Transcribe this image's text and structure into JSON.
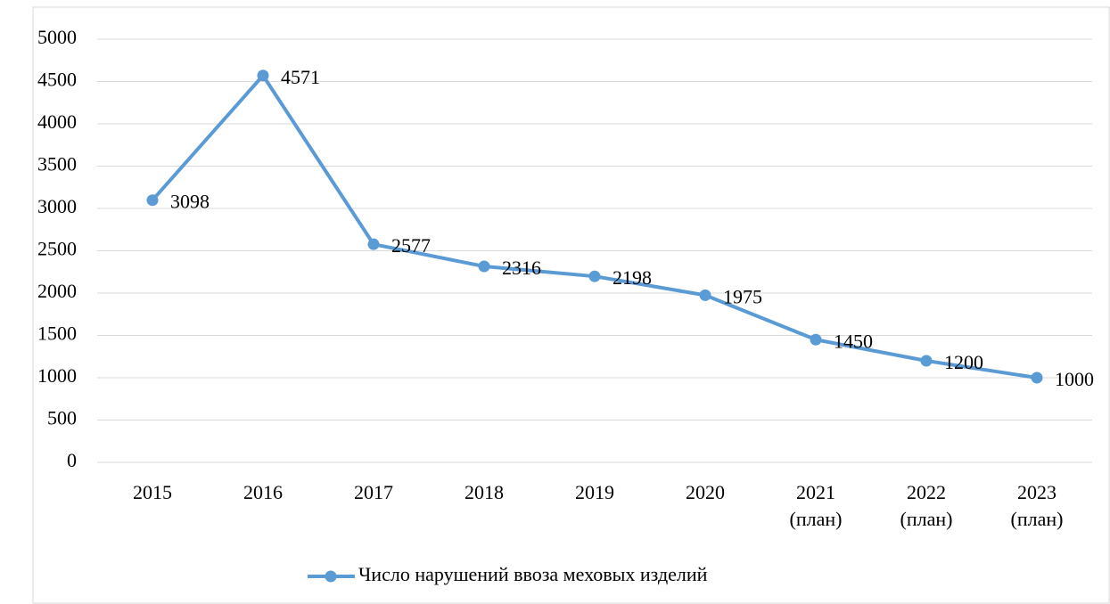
{
  "chart_data": {
    "type": "line",
    "categories": [
      "2015",
      "2016",
      "2017",
      "2018",
      "2019",
      "2020",
      "2021\n(план)",
      "2022\n(план)",
      "2023\n(план)"
    ],
    "series": [
      {
        "name": "Число нарушений ввоза меховых изделий",
        "color": "#5b9bd5",
        "values": [
          3098,
          4571,
          2577,
          2316,
          2198,
          1975,
          1450,
          1200,
          1000
        ]
      }
    ],
    "ylim": [
      0,
      5000
    ],
    "yticks": [
      0,
      500,
      1000,
      1500,
      2000,
      2500,
      3000,
      3500,
      4000,
      4500,
      5000
    ],
    "grid": true,
    "legend": "bottom"
  }
}
